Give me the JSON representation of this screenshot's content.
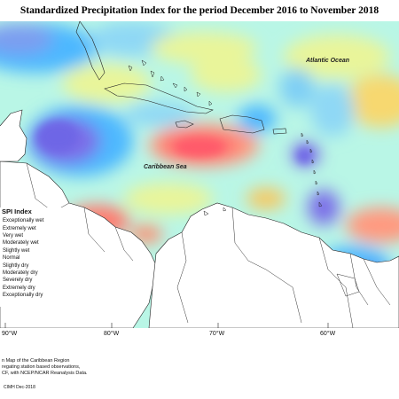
{
  "title": "Standardized Precipitation Index for the period December 2016 to November 2018",
  "map": {
    "labels": {
      "atlantic": "Atlantic Ocean",
      "caribbean": "Caribbean Sea"
    },
    "longitude_ticks": [
      "90°W",
      "80°W",
      "70°W",
      "60°W"
    ],
    "colors": {
      "exceptionally_dry": "#7b6ee8",
      "moderately_dry": "#4db8ff",
      "normal": "#9cf5c8",
      "slightly_wet": "#e9f59a",
      "moderately_wet": "#f7c860",
      "very_wet": "#ff7a6e",
      "ocean_base": "#b9f6e6"
    }
  },
  "legend": {
    "title": "SPI Index",
    "items": [
      "Exceptionally wet",
      "Extremely wet",
      "Very wet",
      "Moderately wet",
      "Slightly wet",
      "Normal",
      "Slightly dry",
      "Moderately dry",
      "Severely dry",
      "Extremely dry",
      "Exceptionally dry"
    ]
  },
  "notes": [
    "n Map of the Caribbean Region",
    "regating station based observations,",
    "CF, with NCEP/NCAR Reanalysis Data."
  ],
  "credit": "CIMH Dec-2018"
}
